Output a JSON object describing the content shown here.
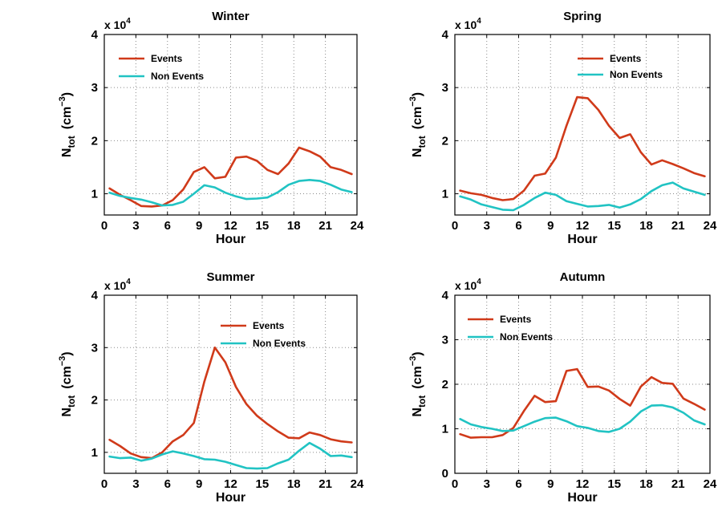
{
  "colors": {
    "events": "#d03a1a",
    "non_events": "#21c3c3",
    "axes": "#000000",
    "grid": "#8a8a8a"
  },
  "chart_data": [
    {
      "type": "line",
      "title": "Winter",
      "xlabel": "Hour",
      "ylabel_main": "N",
      "ylabel_sub": "tot",
      "ylabel_unit": "(cm",
      "ylabel_exp": "−3",
      "ylabel_close": ")",
      "y_multiplier": "x 10",
      "y_multiplier_exp": "4",
      "xlim": [
        0,
        24
      ],
      "ylim": [
        0.6,
        4
      ],
      "xticks": [
        0,
        3,
        6,
        9,
        12,
        15,
        18,
        21,
        24
      ],
      "yticks": [
        1,
        2,
        3,
        4
      ],
      "grid": true,
      "legend_position": "top-left",
      "x": [
        0.5,
        1.5,
        2.5,
        3.5,
        4.5,
        5.5,
        6.5,
        7.5,
        8.5,
        9.5,
        10.5,
        11.5,
        12.5,
        13.5,
        14.5,
        15.5,
        16.5,
        17.5,
        18.5,
        19.5,
        20.5,
        21.5,
        22.5,
        23.5
      ],
      "series": [
        {
          "name": "Events",
          "color_key": "events",
          "values": [
            1.1,
            0.98,
            0.88,
            0.77,
            0.76,
            0.78,
            0.88,
            1.08,
            1.41,
            1.5,
            1.29,
            1.32,
            1.68,
            1.7,
            1.62,
            1.45,
            1.37,
            1.57,
            1.87,
            1.8,
            1.7,
            1.5,
            1.45,
            1.37
          ]
        },
        {
          "name": "Non Events",
          "color_key": "non_events",
          "values": [
            1.02,
            0.96,
            0.92,
            0.89,
            0.84,
            0.78,
            0.79,
            0.85,
            1.0,
            1.16,
            1.12,
            1.02,
            0.95,
            0.9,
            0.91,
            0.93,
            1.03,
            1.17,
            1.24,
            1.26,
            1.24,
            1.17,
            1.08,
            1.03
          ]
        }
      ]
    },
    {
      "type": "line",
      "title": "Spring",
      "xlabel": "Hour",
      "ylabel_main": "N",
      "ylabel_sub": "tot",
      "ylabel_unit": "(cm",
      "ylabel_exp": "−3",
      "ylabel_close": ")",
      "y_multiplier": "x 10",
      "y_multiplier_exp": "4",
      "xlim": [
        0,
        24
      ],
      "ylim": [
        0.6,
        4
      ],
      "xticks": [
        0,
        3,
        6,
        9,
        12,
        15,
        18,
        21,
        24
      ],
      "yticks": [
        1,
        2,
        3,
        4
      ],
      "grid": true,
      "legend_position": "top-right",
      "x": [
        0.5,
        1.5,
        2.5,
        3.5,
        4.5,
        5.5,
        6.5,
        7.5,
        8.5,
        9.5,
        10.5,
        11.5,
        12.5,
        13.5,
        14.5,
        15.5,
        16.5,
        17.5,
        18.5,
        19.5,
        20.5,
        21.5,
        22.5,
        23.5
      ],
      "series": [
        {
          "name": "Events",
          "color_key": "events",
          "values": [
            1.06,
            1.01,
            0.98,
            0.92,
            0.88,
            0.9,
            1.06,
            1.34,
            1.38,
            1.68,
            2.28,
            2.82,
            2.8,
            2.58,
            2.28,
            2.05,
            2.12,
            1.78,
            1.55,
            1.63,
            1.56,
            1.48,
            1.39,
            1.33
          ]
        },
        {
          "name": "Non Events",
          "color_key": "non_events",
          "values": [
            0.95,
            0.89,
            0.8,
            0.75,
            0.7,
            0.69,
            0.79,
            0.92,
            1.02,
            0.98,
            0.86,
            0.81,
            0.76,
            0.77,
            0.79,
            0.74,
            0.8,
            0.9,
            1.05,
            1.16,
            1.21,
            1.1,
            1.04,
            0.98
          ]
        }
      ]
    },
    {
      "type": "line",
      "title": "Summer",
      "xlabel": "Hour",
      "ylabel_main": "N",
      "ylabel_sub": "tot",
      "ylabel_unit": "(cm",
      "ylabel_exp": "−3",
      "ylabel_close": ")",
      "y_multiplier": "x 10",
      "y_multiplier_exp": "4",
      "xlim": [
        0,
        24
      ],
      "ylim": [
        0.6,
        4
      ],
      "xticks": [
        0,
        3,
        6,
        9,
        12,
        15,
        18,
        21,
        24
      ],
      "yticks": [
        1,
        2,
        3,
        4
      ],
      "grid": true,
      "legend_position": "top-right",
      "x": [
        0.5,
        1.5,
        2.5,
        3.5,
        4.5,
        5.5,
        6.5,
        7.5,
        8.5,
        9.5,
        10.5,
        11.5,
        12.5,
        13.5,
        14.5,
        15.5,
        16.5,
        17.5,
        18.5,
        19.5,
        20.5,
        21.5,
        22.5,
        23.5
      ],
      "series": [
        {
          "name": "Events",
          "color_key": "events",
          "values": [
            1.24,
            1.12,
            0.98,
            0.91,
            0.89,
            1.0,
            1.21,
            1.33,
            1.56,
            2.35,
            3.0,
            2.72,
            2.25,
            1.92,
            1.7,
            1.54,
            1.4,
            1.28,
            1.27,
            1.38,
            1.33,
            1.25,
            1.21,
            1.19
          ]
        },
        {
          "name": "Non Events",
          "color_key": "non_events",
          "values": [
            0.92,
            0.89,
            0.9,
            0.84,
            0.88,
            0.96,
            1.02,
            0.98,
            0.93,
            0.87,
            0.86,
            0.82,
            0.76,
            0.7,
            0.69,
            0.7,
            0.79,
            0.86,
            1.03,
            1.18,
            1.07,
            0.93,
            0.94,
            0.91
          ]
        }
      ]
    },
    {
      "type": "line",
      "title": "Autumn",
      "xlabel": "Hour",
      "ylabel_main": "N",
      "ylabel_sub": "tot",
      "ylabel_unit": "(cm",
      "ylabel_exp": "−3",
      "ylabel_close": ")",
      "y_multiplier": "x 10",
      "y_multiplier_exp": "4",
      "xlim": [
        0,
        24
      ],
      "ylim": [
        0,
        4
      ],
      "xticks": [
        0,
        3,
        6,
        9,
        12,
        15,
        18,
        21,
        24
      ],
      "yticks": [
        0,
        1,
        2,
        3,
        4
      ],
      "grid": true,
      "legend_position": "top-left",
      "x": [
        0.5,
        1.5,
        2.5,
        3.5,
        4.5,
        5.5,
        6.5,
        7.5,
        8.5,
        9.5,
        10.5,
        11.5,
        12.5,
        13.5,
        14.5,
        15.5,
        16.5,
        17.5,
        18.5,
        19.5,
        20.5,
        21.5,
        22.5,
        23.5
      ],
      "series": [
        {
          "name": "Events",
          "color_key": "events",
          "values": [
            0.88,
            0.8,
            0.81,
            0.81,
            0.86,
            1.02,
            1.4,
            1.74,
            1.6,
            1.62,
            2.3,
            2.34,
            1.94,
            1.95,
            1.86,
            1.67,
            1.52,
            1.95,
            2.16,
            2.03,
            2.01,
            1.68,
            1.56,
            1.43
          ]
        },
        {
          "name": "Non Events",
          "color_key": "non_events",
          "values": [
            1.22,
            1.1,
            1.04,
            1.0,
            0.95,
            0.96,
            1.06,
            1.16,
            1.24,
            1.25,
            1.17,
            1.06,
            1.02,
            0.95,
            0.93,
            1.0,
            1.16,
            1.39,
            1.52,
            1.53,
            1.48,
            1.36,
            1.19,
            1.1
          ]
        }
      ]
    }
  ]
}
